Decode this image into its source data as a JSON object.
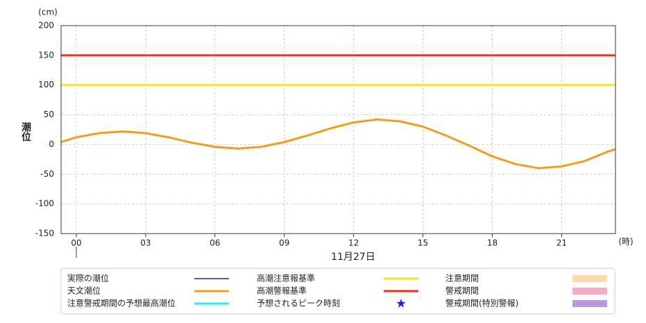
{
  "chart_data": {
    "type": "line",
    "y_label": "潮位",
    "y_unit": "(cm)",
    "x_unit": "(時)",
    "date_label": "11月27日",
    "xlim": [
      -0.66,
      23.33
    ],
    "xticks": [
      {
        "value": 0,
        "label": "00"
      },
      {
        "value": 3,
        "label": "03"
      },
      {
        "value": 6,
        "label": "06"
      },
      {
        "value": 9,
        "label": "09"
      },
      12,
      15,
      18,
      21
    ],
    "ylim": [
      -150,
      200
    ],
    "yticks": [
      -150,
      -100,
      -50,
      0,
      50,
      100,
      150,
      200
    ],
    "grid": true,
    "series": [
      {
        "name": "天文潮位",
        "color": "#f39c1a",
        "x": [
          -0.66,
          0,
          1,
          2,
          3,
          4,
          5,
          6,
          7,
          8,
          9,
          10,
          11,
          12,
          13,
          14,
          15,
          16,
          17,
          18,
          19,
          20,
          21,
          22,
          23,
          23.33
        ],
        "values": [
          4,
          12,
          19,
          22,
          19,
          12,
          3,
          -4,
          -7,
          -4,
          4,
          15,
          27,
          37,
          42,
          39,
          30,
          15,
          -2,
          -20,
          -33,
          -40,
          -37,
          -28,
          -12,
          -8
        ]
      }
    ],
    "reference_lines": [
      {
        "name": "高潮注意報基準",
        "value": 100,
        "color": "#f0e81a"
      },
      {
        "name": "高潮警報基準",
        "value": 150,
        "color": "#e8341c"
      }
    ],
    "legend_items": [
      {
        "name": "実際の潮位",
        "color": "#3b1f7a",
        "symbol": "line"
      },
      {
        "name": "注意警戒期間の予想最高潮位",
        "color": "#2ee8e8",
        "symbol": "line"
      },
      {
        "name": "予想されるピーク時刻",
        "color": "#1a1aff",
        "symbol": "star"
      },
      {
        "name": "注意期間",
        "color": "#fcd9a8",
        "symbol": "box"
      },
      {
        "name": "警戒期間",
        "color": "#f7aac8",
        "symbol": "box"
      },
      {
        "name": "警戒期間(特別警報)",
        "color": "#b99ae0",
        "symbol": "box"
      }
    ]
  }
}
